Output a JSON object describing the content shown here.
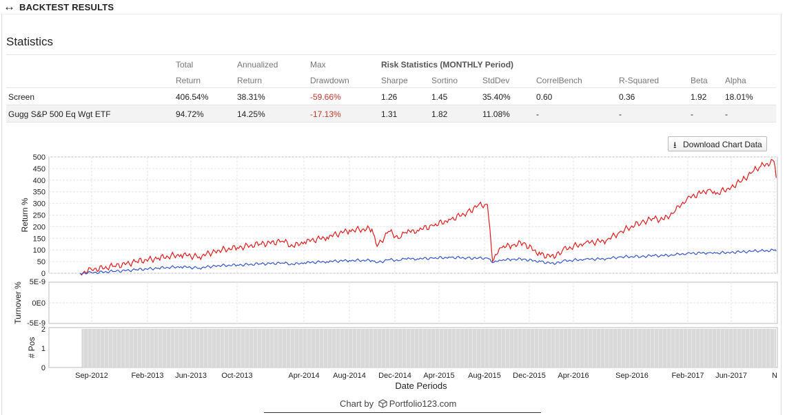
{
  "header": {
    "icon": "double-arrow-icon",
    "title": "BACKTEST RESULTS"
  },
  "statistics": {
    "title": "Statistics",
    "headers": {
      "total": [
        "Total",
        "Return"
      ],
      "annualized": [
        "Annualized",
        "Return"
      ],
      "maxdd": [
        "Max",
        "Drawdown"
      ],
      "risk_title": "Risk Statistics (MONTHLY Period)",
      "risk_cols": [
        "Sharpe",
        "Sortino",
        "StdDev",
        "CorrelBench",
        "R-Squared",
        "Beta",
        "Alpha"
      ]
    },
    "rows": [
      {
        "name": "Screen",
        "total": "406.54%",
        "annualized": "38.31%",
        "maxdd": "-59.66%",
        "sharpe": "1.26",
        "sortino": "1.45",
        "stddev": "35.40%",
        "correl": "0.60",
        "rsq": "0.36",
        "beta": "1.92",
        "alpha": "18.01%"
      },
      {
        "name": "Gugg S&P 500 Eq Wgt ETF",
        "total": "94.72%",
        "annualized": "14.25%",
        "maxdd": "-17.13%",
        "sharpe": "1.31",
        "sortino": "1.82",
        "stddev": "11.08%",
        "correl": "-",
        "rsq": "-",
        "beta": "-",
        "alpha": "-"
      }
    ]
  },
  "download_button": {
    "icon": "download-icon",
    "label": "Download Chart Data"
  },
  "chart_data": {
    "type": "line",
    "title": "",
    "xlabel": "Date Periods",
    "x_ticks": [
      "Sep-2012",
      "Feb-2013",
      "Jun-2013",
      "Oct-2013",
      "Apr-2014",
      "Aug-2014",
      "Dec-2014",
      "Apr-2015",
      "Aug-2015",
      "Dec-2015",
      "Apr-2016",
      "Sep-2016",
      "Feb-2017",
      "Jun-2017",
      "N"
    ],
    "panels": [
      {
        "ylabel": "Return %",
        "ylim": [
          0,
          500
        ],
        "y_ticks": [
          "500",
          "450",
          "400",
          "350",
          "300",
          "250",
          "200",
          "150",
          "100",
          "50",
          "0"
        ],
        "grid": true,
        "x_dates": [
          "2012-08-01",
          "2012-09-01",
          "2012-11-01",
          "2013-01-01",
          "2013-03-01",
          "2013-05-01",
          "2013-06-20",
          "2013-08-01",
          "2013-10-01",
          "2013-12-01",
          "2014-02-01",
          "2014-03-01",
          "2014-04-01",
          "2014-06-01",
          "2014-08-01",
          "2014-10-01",
          "2014-10-15",
          "2014-11-15",
          "2014-12-15",
          "2014-12-31",
          "2015-02-01",
          "2015-03-15",
          "2015-05-01",
          "2015-06-15",
          "2015-07-15",
          "2015-08-10",
          "2015-08-24",
          "2015-09-15",
          "2015-10-15",
          "2015-11-15",
          "2016-01-01",
          "2016-02-11",
          "2016-03-01",
          "2016-05-01",
          "2016-06-27",
          "2016-08-01",
          "2016-10-01",
          "2016-11-04",
          "2016-12-01",
          "2017-01-01",
          "2017-02-01",
          "2017-04-01",
          "2017-04-20",
          "2017-06-01",
          "2017-07-01",
          "2017-08-01",
          "2017-08-20",
          "2017-09-25",
          "2017-10-01"
        ],
        "series": [
          {
            "color": "#e31a1c",
            "values": [
              0,
              15,
              30,
              50,
              65,
              80,
              70,
              95,
              110,
              125,
              138,
              115,
              135,
              155,
              185,
              190,
              115,
              180,
              150,
              175,
              185,
              205,
              230,
              260,
              290,
              295,
              50,
              110,
              120,
              130,
              80,
              70,
              100,
              130,
              140,
              175,
              220,
              235,
              230,
              270,
              320,
              360,
              340,
              370,
              400,
              440,
              460,
              480,
              410
            ]
          },
          {
            "color": "#3355cc",
            "values": [
              0,
              2,
              8,
              15,
              22,
              28,
              22,
              32,
              35,
              40,
              44,
              38,
              45,
              50,
              55,
              55,
              45,
              58,
              55,
              62,
              62,
              65,
              68,
              66,
              64,
              65,
              45,
              55,
              60,
              60,
              50,
              40,
              52,
              60,
              62,
              70,
              72,
              76,
              75,
              80,
              85,
              88,
              86,
              90,
              92,
              95,
              96,
              98,
              95
            ]
          }
        ]
      },
      {
        "ylabel": "Turnover %",
        "y_ticks": [
          "5E-9",
          "0E0",
          "-5E-9"
        ],
        "values": [
          0
        ]
      },
      {
        "ylabel": "# Pos",
        "ylim": [
          0,
          2
        ],
        "y_ticks": [
          "2",
          "1",
          "0"
        ],
        "value": 2,
        "color": "#d9d9d9"
      }
    ]
  },
  "credit": {
    "prefix": "Chart by",
    "icon": "cube-icon",
    "brand": "Portfolio123.com"
  }
}
